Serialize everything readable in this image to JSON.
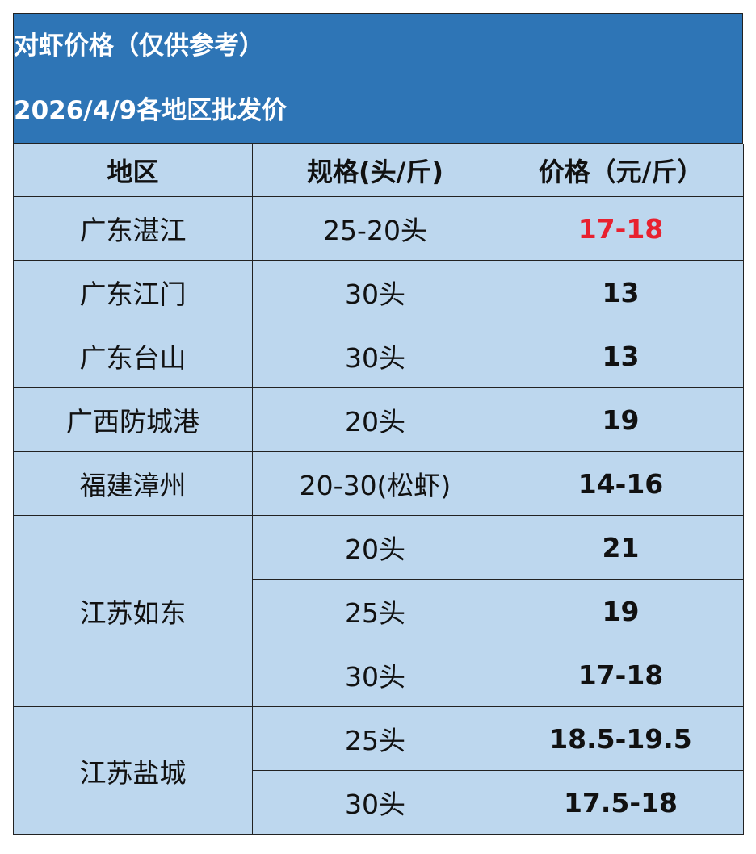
{
  "header": {
    "title": "对虾价格（仅供参考）",
    "subtitle": "2026/4/9各地区批发价"
  },
  "table": {
    "columns": [
      "地区",
      "规格(头/斤)",
      "价格（元/斤）"
    ],
    "groups": [
      {
        "region": "广东湛江",
        "items": [
          {
            "spec": "25-20头",
            "price": "17-18",
            "color": "#e8212f"
          }
        ]
      },
      {
        "region": "广东江门",
        "items": [
          {
            "spec": "30头",
            "price": "13"
          }
        ]
      },
      {
        "region": "广东台山",
        "items": [
          {
            "spec": "30头",
            "price": "13"
          }
        ]
      },
      {
        "region": "广西防城港",
        "items": [
          {
            "spec": "20头",
            "price": "19"
          }
        ]
      },
      {
        "region": "福建漳州",
        "items": [
          {
            "spec": "20-30(松虾)",
            "price": "14-16"
          }
        ]
      },
      {
        "region": "江苏如东",
        "items": [
          {
            "spec": "20头",
            "price": "21"
          },
          {
            "spec": "25头",
            "price": "19"
          },
          {
            "spec": "30头",
            "price": "17-18"
          }
        ]
      },
      {
        "region": "江苏盐城",
        "items": [
          {
            "spec": "25头",
            "price": "18.5-19.5"
          },
          {
            "spec": "30头",
            "price": "17.5-18"
          }
        ]
      }
    ]
  }
}
